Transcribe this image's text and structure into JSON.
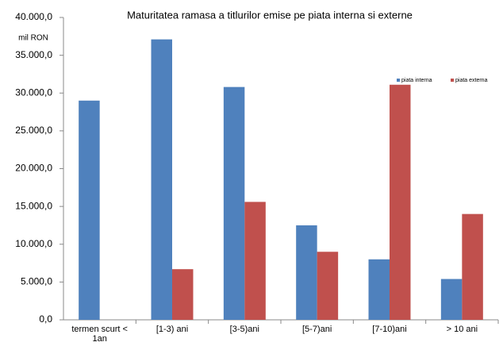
{
  "chart_data": {
    "type": "bar",
    "title": "Maturitatea ramasa a titlurilor emise pe piata interna si externe",
    "unit_label": "mil RON",
    "categories": [
      "termen scurt < 1an",
      "[1-3) ani",
      "[3-5)ani",
      "[5-7)ani",
      "[7-10)ani",
      "> 10 ani"
    ],
    "series": [
      {
        "name": "piata interna",
        "color": "#4f81bd",
        "values": [
          29000,
          37100,
          30800,
          12500,
          8000,
          5400
        ]
      },
      {
        "name": "piata externa",
        "color": "#c0504d",
        "values": [
          null,
          6700,
          15600,
          9000,
          31100,
          14000
        ]
      }
    ],
    "ylim": [
      0,
      40000
    ],
    "yticks": [
      {
        "value": 0,
        "label": "0,0"
      },
      {
        "value": 5000,
        "label": "5.000,0"
      },
      {
        "value": 10000,
        "label": "10.000,0"
      },
      {
        "value": 15000,
        "label": "15.000,0"
      },
      {
        "value": 20000,
        "label": "20.000,0"
      },
      {
        "value": 25000,
        "label": "25.000,0"
      },
      {
        "value": 30000,
        "label": "30.000,0"
      },
      {
        "value": 35000,
        "label": "35.000,0"
      },
      {
        "value": 40000,
        "label": "40.000,0"
      }
    ],
    "grid": false,
    "legend": "upper-right"
  }
}
